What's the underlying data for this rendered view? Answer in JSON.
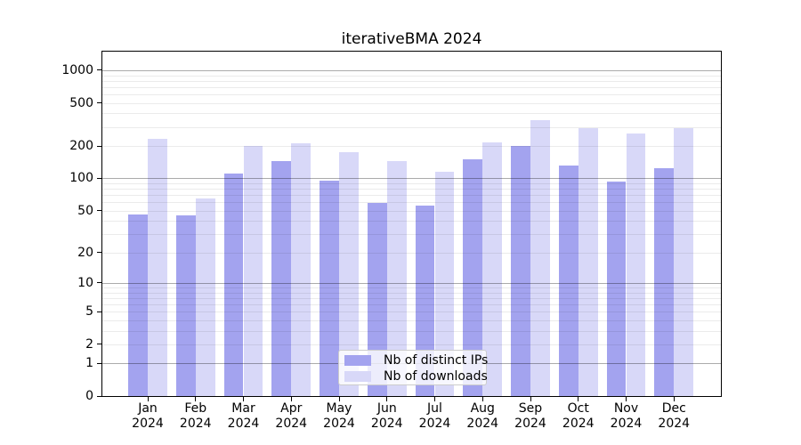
{
  "title": "iterativeBMA 2024",
  "colors": {
    "distinct_ips": "#a3a3ef",
    "downloads": "#d8d8f8",
    "grid_minor": "#ebebeb",
    "grid_major": "#ababab",
    "axis": "#000000",
    "legend_border": "#cccccc",
    "background": "#ffffff"
  },
  "legend": {
    "entries": [
      {
        "label": "Nb of distinct IPs",
        "swatch": "distinct-ips-swatch"
      },
      {
        "label": "Nb of downloads",
        "swatch": "downloads-swatch"
      }
    ],
    "position": "lower center"
  },
  "chart_data": {
    "type": "bar",
    "title": "iterativeBMA 2024",
    "categories": [
      "Jan 2024",
      "Feb 2024",
      "Mar 2024",
      "Apr 2024",
      "May 2024",
      "Jun 2024",
      "Jul 2024",
      "Aug 2024",
      "Sep 2024",
      "Oct 2024",
      "Nov 2024",
      "Dec 2024"
    ],
    "series": [
      {
        "name": "Nb of distinct IPs",
        "color": "#a3a3ef",
        "values": [
          46,
          45,
          110,
          146,
          96,
          59,
          56,
          150,
          202,
          132,
          93,
          124
        ]
      },
      {
        "name": "Nb of downloads",
        "color": "#d8d8f8",
        "values": [
          235,
          65,
          199,
          213,
          176,
          145,
          116,
          216,
          347,
          290,
          261,
          290
        ]
      }
    ],
    "xlabel": "",
    "ylabel": "",
    "yscale": "log10(value+1)",
    "ylim": [
      0,
      1480
    ],
    "y_tick_labels": [
      0,
      1,
      2,
      5,
      10,
      20,
      50,
      100,
      200,
      500,
      1000
    ],
    "grid_major_values": [
      1,
      10,
      100,
      1000
    ],
    "grid_minor_values": [
      2,
      3,
      4,
      5,
      6,
      7,
      8,
      9,
      20,
      30,
      40,
      50,
      60,
      70,
      80,
      90,
      200,
      300,
      400,
      500,
      600,
      700,
      800,
      900
    ],
    "grid": "horizontal only",
    "legend_position": "lower center"
  }
}
